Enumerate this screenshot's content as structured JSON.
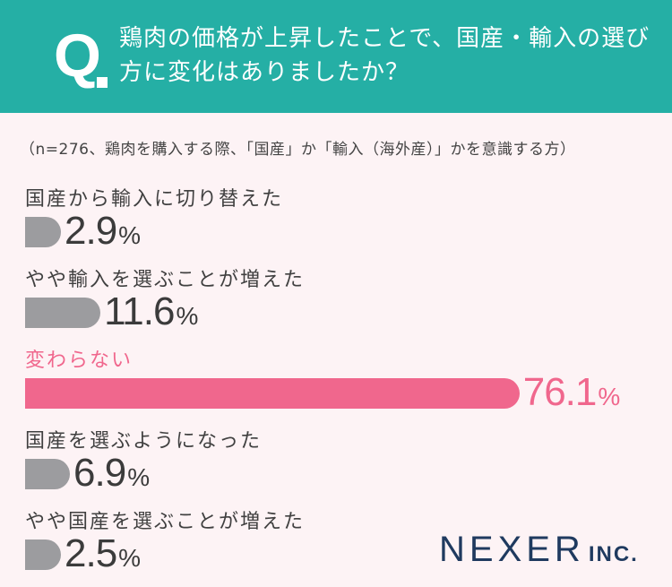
{
  "header": {
    "q_letter": "Q.",
    "question": "鶏肉の価格が上昇したことで、国産・輸入の選び方に変化はありましたか？"
  },
  "note": "（n=276、鶏肉を購入する際、「国産」か「輸入（海外産）」かを意識する方）",
  "logo": {
    "main": "NEXER",
    "sub": "INC."
  },
  "colors": {
    "header": "#25afa5",
    "bar": "#9c9c9f",
    "highlight": "#f0678d",
    "background": "#fdf3f5"
  },
  "chart_data": {
    "type": "bar",
    "orientation": "horizontal",
    "unit": "%",
    "highlight_index": 2,
    "categories": [
      "国産から輸入に切り替えた",
      "やや輸入を選ぶことが増えた",
      "変わらない",
      "国産を選ぶようになった",
      "やや国産を選ぶことが増えた"
    ],
    "values": [
      2.9,
      11.6,
      76.1,
      6.9,
      2.5
    ]
  }
}
